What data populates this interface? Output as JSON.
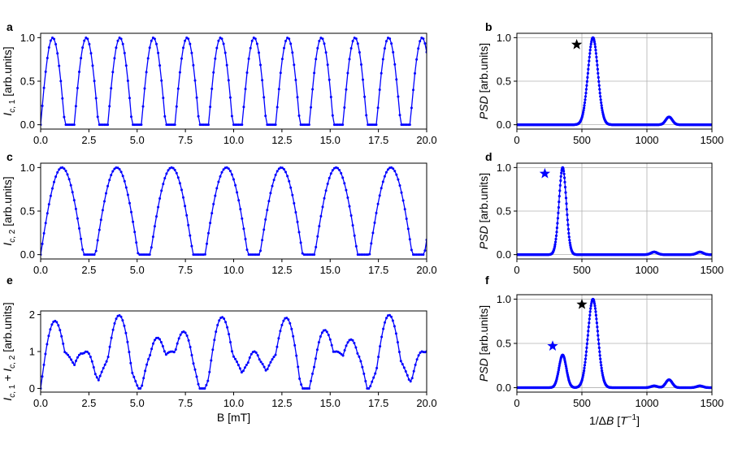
{
  "panels": [
    {
      "id": "a",
      "letter": "a",
      "type": "line",
      "ylabel_html": "<tspan font-style='italic'>I</tspan><tspan font-style='italic' font-size='10' dy='4'>c</tspan><tspan font-size='10'>, 1</tspan><tspan dy='-4'> [arb.units]</tspan>",
      "xlabel": "",
      "xlim": [
        0,
        20
      ],
      "ylim": [
        -0.05,
        1.05
      ],
      "xticks": [
        0,
        2.5,
        5,
        7.5,
        10,
        12.5,
        15,
        17.5,
        20
      ],
      "xtick_labels": [
        "0.0",
        "2.5",
        "5.0",
        "7.5",
        "10.0",
        "12.5",
        "15.0",
        "17.5",
        "20.0"
      ],
      "yticks": [
        0,
        0.5,
        1
      ],
      "ytick_labels": [
        "0.0",
        "0.5",
        "1.0"
      ],
      "grid": false,
      "series": [
        {
          "kind": "sine",
          "period": 1.74,
          "phase": 0,
          "amp": 1,
          "color": "#0000ff"
        }
      ]
    },
    {
      "id": "b",
      "letter": "b",
      "type": "psd",
      "ylabel_html": "<tspan font-style='italic'>PSD</tspan> [arb.units]",
      "xlabel": "",
      "xlim": [
        0,
        1500
      ],
      "ylim": [
        -0.05,
        1.05
      ],
      "xticks": [
        0,
        500,
        1000,
        1500
      ],
      "xtick_labels": [
        "0",
        "500",
        "1000",
        "1500"
      ],
      "yticks": [
        0,
        0.5,
        1
      ],
      "ytick_labels": [
        "0.0",
        "0.5",
        "1.0"
      ],
      "grid": true,
      "peaks": [
        {
          "center": 585,
          "height": 1.0,
          "width": 38
        },
        {
          "center": 1170,
          "height": 0.09,
          "width": 25
        }
      ],
      "star": {
        "x": 460,
        "y": 0.92,
        "color": "#000000"
      },
      "color": "#0000ff"
    },
    {
      "id": "c",
      "letter": "c",
      "type": "line",
      "ylabel_html": "<tspan font-style='italic'>I</tspan><tspan font-style='italic' font-size='10' dy='4'>c</tspan><tspan font-size='10'>, 2</tspan><tspan dy='-4'> [arb.units]</tspan>",
      "xlabel": "",
      "xlim": [
        0,
        20
      ],
      "ylim": [
        -0.05,
        1.05
      ],
      "xticks": [
        0,
        2.5,
        5,
        7.5,
        10,
        12.5,
        15,
        17.5,
        20
      ],
      "xtick_labels": [
        "0.0",
        "2.5",
        "5.0",
        "7.5",
        "10.0",
        "12.5",
        "15.0",
        "17.5",
        "20.0"
      ],
      "yticks": [
        0,
        0.5,
        1
      ],
      "ytick_labels": [
        "0.0",
        "0.5",
        "1.0"
      ],
      "grid": false,
      "series": [
        {
          "kind": "sine",
          "period": 2.84,
          "phase": 0,
          "amp": 1,
          "color": "#0000ff"
        }
      ]
    },
    {
      "id": "d",
      "letter": "d",
      "type": "psd",
      "ylabel_html": "<tspan font-style='italic'>PSD</tspan> [arb.units]",
      "xlabel": "",
      "xlim": [
        0,
        1500
      ],
      "ylim": [
        -0.05,
        1.05
      ],
      "xticks": [
        0,
        500,
        1000,
        1500
      ],
      "xtick_labels": [
        "0",
        "500",
        "1000",
        "1500"
      ],
      "yticks": [
        0,
        0.5,
        1
      ],
      "ytick_labels": [
        "0.0",
        "0.5",
        "1.0"
      ],
      "grid": true,
      "peaks": [
        {
          "center": 352,
          "height": 1.0,
          "width": 28
        },
        {
          "center": 1056,
          "height": 0.03,
          "width": 25
        },
        {
          "center": 1408,
          "height": 0.03,
          "width": 25
        }
      ],
      "star": {
        "x": 215,
        "y": 0.93,
        "color": "#0000ff"
      },
      "color": "#0000ff"
    },
    {
      "id": "e",
      "letter": "e",
      "type": "line",
      "ylabel_html": "<tspan font-style='italic'>I</tspan><tspan font-style='italic' font-size='10' dy='4'>c</tspan><tspan font-size='10'>, 1</tspan><tspan dy='-4'> + </tspan><tspan font-style='italic'>I</tspan><tspan font-style='italic' font-size='10' dy='4'>c</tspan><tspan font-size='10'>, 2</tspan><tspan dy='-4'> [arb.units]</tspan>",
      "xlabel": "B [mT]",
      "xlim": [
        0,
        20
      ],
      "ylim": [
        -0.1,
        2.1
      ],
      "xticks": [
        0,
        2.5,
        5,
        7.5,
        10,
        12.5,
        15,
        17.5,
        20
      ],
      "xtick_labels": [
        "0.0",
        "2.5",
        "5.0",
        "7.5",
        "10.0",
        "12.5",
        "15.0",
        "17.5",
        "20.0"
      ],
      "yticks": [
        0,
        1,
        2
      ],
      "ytick_labels": [
        "0",
        "1",
        "2"
      ],
      "grid": false,
      "series": [
        {
          "kind": "sum",
          "periods": [
            1.74,
            2.84
          ],
          "color": "#0000ff"
        }
      ]
    },
    {
      "id": "f",
      "letter": "f",
      "type": "psd",
      "ylabel_html": "<tspan font-style='italic'>PSD</tspan> [arb.units]",
      "xlabel_html": "1/Δ<tspan font-style='italic'>B</tspan> [<tspan font-style='italic'>T</tspan><tspan font-size='10' dy='-6'>−1</tspan><tspan dy='6'>]</tspan>",
      "xlim": [
        0,
        1500
      ],
      "ylim": [
        -0.05,
        1.05
      ],
      "xticks": [
        0,
        500,
        1000,
        1500
      ],
      "xtick_labels": [
        "0",
        "500",
        "1000",
        "1500"
      ],
      "yticks": [
        0,
        0.5,
        1
      ],
      "ytick_labels": [
        "0.0",
        "0.5",
        "1.0"
      ],
      "grid": true,
      "peaks": [
        {
          "center": 352,
          "height": 0.37,
          "width": 28
        },
        {
          "center": 585,
          "height": 1.0,
          "width": 38
        },
        {
          "center": 1056,
          "height": 0.02,
          "width": 25
        },
        {
          "center": 1170,
          "height": 0.09,
          "width": 25
        },
        {
          "center": 1408,
          "height": 0.02,
          "width": 25
        }
      ],
      "stars": [
        {
          "x": 275,
          "y": 0.47,
          "color": "#0000ff"
        },
        {
          "x": 500,
          "y": 0.94,
          "color": "#000000"
        }
      ],
      "color": "#0000ff"
    }
  ],
  "chart_data": [
    {
      "type": "line",
      "panel": "a",
      "ylabel": "I_c,1 [arb.units]",
      "xlim": [
        0,
        20
      ],
      "ylim": [
        0,
        1
      ],
      "note": "|sin(pi*B/1.74)| periodic, period ~1.74 mT"
    },
    {
      "type": "line",
      "panel": "b",
      "ylabel": "PSD [arb.units]",
      "xlim": [
        0,
        1500
      ],
      "ylim": [
        0,
        1
      ],
      "peaks": [
        {
          "x": 585,
          "y": 1.0
        },
        {
          "x": 1170,
          "y": 0.09
        }
      ]
    },
    {
      "type": "line",
      "panel": "c",
      "ylabel": "I_c,2 [arb.units]",
      "xlim": [
        0,
        20
      ],
      "ylim": [
        0,
        1
      ],
      "note": "period ~2.84 mT"
    },
    {
      "type": "line",
      "panel": "d",
      "ylabel": "PSD [arb.units]",
      "xlim": [
        0,
        1500
      ],
      "ylim": [
        0,
        1
      ],
      "peaks": [
        {
          "x": 352,
          "y": 1.0
        },
        {
          "x": 1056,
          "y": 0.03
        },
        {
          "x": 1408,
          "y": 0.03
        }
      ]
    },
    {
      "type": "line",
      "panel": "e",
      "ylabel": "I_c,1 + I_c,2 [arb.units]",
      "xlabel": "B [mT]",
      "xlim": [
        0,
        20
      ],
      "ylim": [
        0,
        2
      ]
    },
    {
      "type": "line",
      "panel": "f",
      "ylabel": "PSD [arb.units]",
      "xlabel": "1/ΔB [T^-1]",
      "xlim": [
        0,
        1500
      ],
      "ylim": [
        0,
        1
      ],
      "peaks": [
        {
          "x": 352,
          "y": 0.37
        },
        {
          "x": 585,
          "y": 1.0
        },
        {
          "x": 1170,
          "y": 0.09
        }
      ]
    }
  ]
}
